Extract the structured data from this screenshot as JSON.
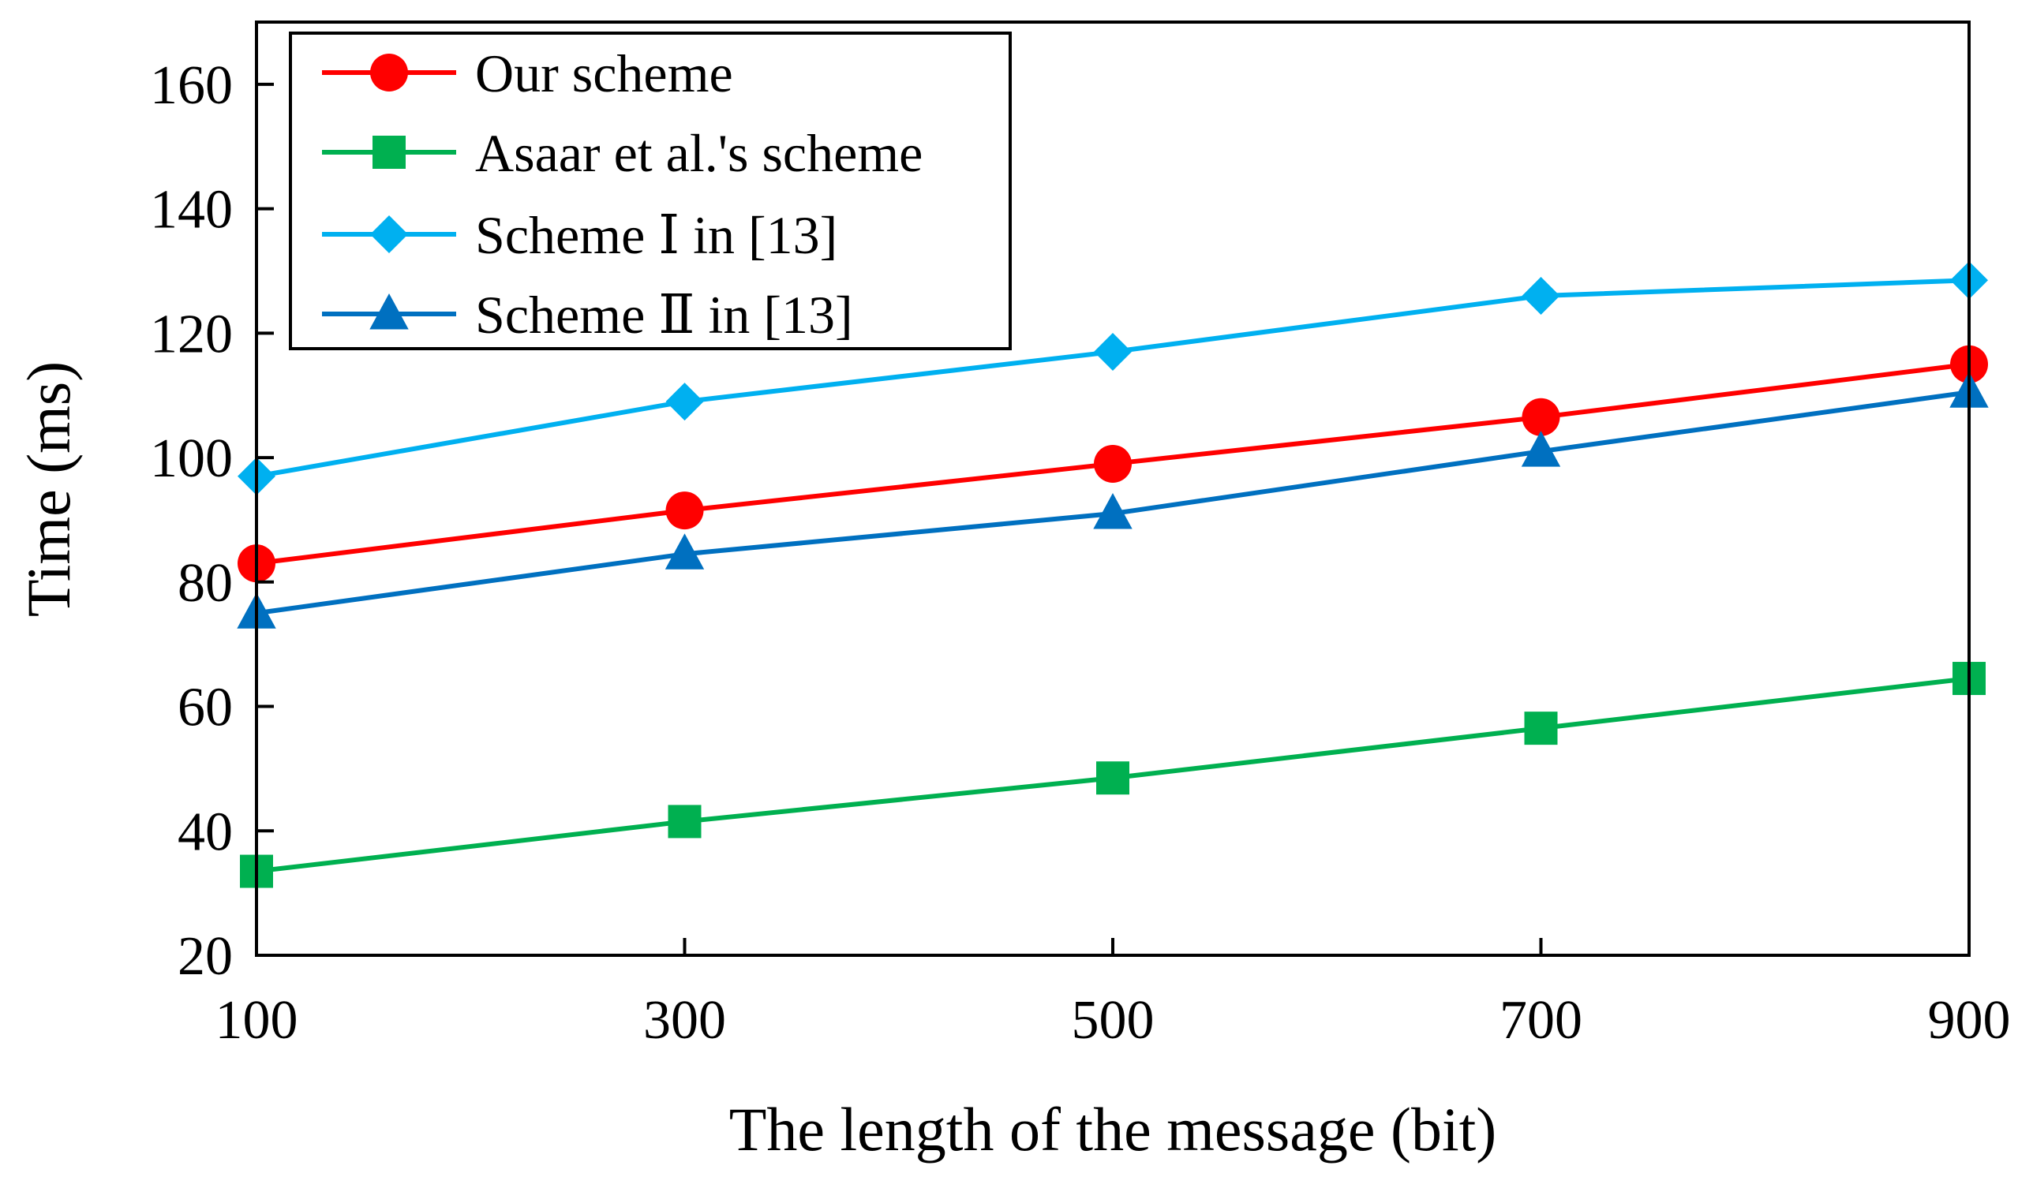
{
  "chart_data": {
    "type": "line",
    "title": "",
    "xlabel": "The length of the message (bit)",
    "ylabel": "Time (ms)",
    "x": [
      100,
      300,
      500,
      700,
      900
    ],
    "xlim": [
      100,
      900
    ],
    "ylim": [
      20,
      170
    ],
    "xticks": [
      "100",
      "300",
      "500",
      "700",
      "900"
    ],
    "yticks": [
      "20",
      "40",
      "60",
      "80",
      "100",
      "120",
      "140",
      "160"
    ],
    "grid": false,
    "legend_position": "top-left",
    "series": [
      {
        "name": "Our scheme",
        "values": [
          83,
          91.5,
          99,
          106.5,
          115
        ],
        "color": "#ff0000",
        "marker": "circle"
      },
      {
        "name": "Asaar et al.'s scheme",
        "values": [
          33.5,
          41.5,
          48.5,
          56.5,
          64.5
        ],
        "color": "#00b050",
        "marker": "square"
      },
      {
        "name": "Scheme Ⅰ in [13]",
        "values": [
          97,
          109,
          117,
          126,
          128.5
        ],
        "color": "#00b0f0",
        "marker": "diamond"
      },
      {
        "name": "Scheme Ⅱ in [13]",
        "values": [
          75,
          84.5,
          91,
          101,
          110.5
        ],
        "color": "#0070c0",
        "marker": "triangle"
      }
    ]
  }
}
